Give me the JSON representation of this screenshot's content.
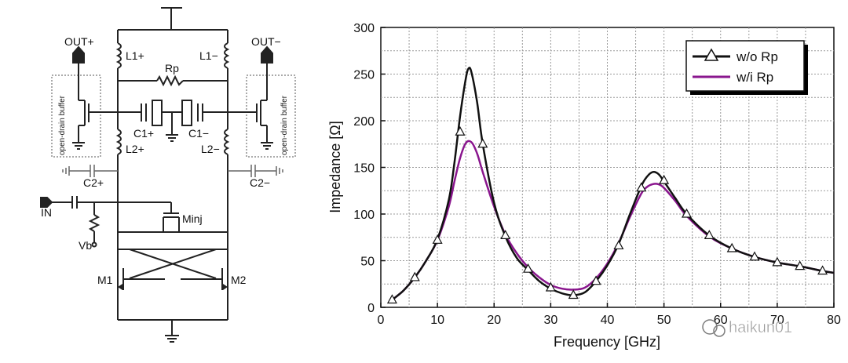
{
  "circuit": {
    "labels": {
      "out_plus": "OUT+",
      "out_minus": "OUT−",
      "l1_plus": "L1+",
      "l1_minus": "L1−",
      "rp": "Rp",
      "c1_plus": "C1+",
      "c1_minus": "C1−",
      "l2_plus": "L2+",
      "l2_minus": "L2−",
      "c2_plus": "C2+",
      "c2_minus": "C2−",
      "in": "IN",
      "m_inj": "Minj",
      "vb": "Vb",
      "m1": "M1",
      "m2": "M2",
      "buffer_left": "open-drain buffer",
      "buffer_right": "open-drain buffer"
    }
  },
  "chart_data": {
    "type": "line",
    "xlabel": "Frequency [GHz]",
    "ylabel": "Impedance [Ω]",
    "xlim": [
      0,
      80
    ],
    "ylim": [
      0,
      300
    ],
    "xticks": [
      0,
      10,
      20,
      30,
      40,
      50,
      60,
      70,
      80
    ],
    "yticks": [
      0,
      50,
      100,
      150,
      200,
      250,
      300
    ],
    "grid": true,
    "legend_position": "top-right",
    "series": [
      {
        "name": "w/o Rp",
        "color": "#111111",
        "marker": "triangle",
        "x": [
          2,
          4,
          6,
          8,
          10,
          12,
          13,
          14,
          15,
          15.5,
          16,
          17,
          18,
          20,
          22,
          24,
          26,
          28,
          30,
          32,
          34,
          36,
          38,
          40,
          42,
          44,
          46,
          47,
          48,
          49,
          50,
          52,
          54,
          58,
          62,
          66,
          70,
          74,
          78,
          80
        ],
        "y": [
          8,
          18,
          32,
          50,
          73,
          115,
          155,
          205,
          245,
          256,
          252,
          220,
          175,
          112,
          76,
          53,
          40,
          28,
          20,
          15,
          13,
          16,
          28,
          45,
          68,
          100,
          130,
          140,
          145,
          143,
          135,
          117,
          100,
          77,
          63,
          54,
          48,
          44,
          39,
          37
        ]
      },
      {
        "name": "w/i Rp",
        "color": "#8a168e",
        "marker": "none",
        "x": [
          2,
          4,
          6,
          8,
          10,
          12,
          13,
          14,
          15,
          16,
          17,
          18,
          20,
          22,
          24,
          26,
          28,
          30,
          32,
          34,
          36,
          38,
          40,
          42,
          44,
          46,
          47,
          48,
          49,
          50,
          52,
          54,
          58,
          62,
          66,
          70,
          74,
          78,
          80
        ],
        "y": [
          8,
          18,
          32,
          50,
          72,
          108,
          135,
          160,
          176,
          177,
          165,
          145,
          108,
          78,
          58,
          43,
          32,
          24,
          20,
          19,
          21,
          31,
          47,
          69,
          97,
          122,
          129,
          132,
          132,
          128,
          114,
          98,
          76,
          63,
          54,
          48,
          44,
          39,
          37
        ]
      }
    ],
    "marker_points": {
      "x": [
        2,
        6,
        10,
        14,
        18,
        22,
        26,
        30,
        34,
        38,
        42,
        46,
        50,
        54,
        58,
        62,
        66,
        70,
        74,
        78
      ],
      "y": [
        8,
        32,
        72,
        188,
        175,
        77,
        41,
        21,
        13,
        28,
        66,
        128,
        136,
        100,
        77,
        63,
        54,
        48,
        44,
        39
      ]
    }
  },
  "watermark": "haikun01"
}
